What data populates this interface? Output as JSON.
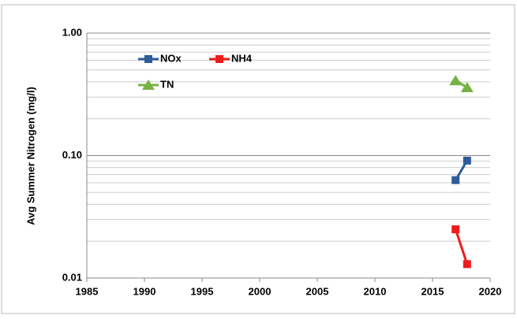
{
  "chart_data": {
    "type": "line",
    "y_label": "Avg Summer Nitrogen (mg/l)",
    "log_y": true,
    "grid": true,
    "minor_grid": true,
    "legend": "upper left",
    "xlim": [
      1985,
      2020
    ],
    "xticks": [
      1985,
      1990,
      1995,
      2000,
      2005,
      2010,
      2015,
      2020
    ],
    "ylim": [
      0.01,
      1
    ],
    "yticks": [
      0.01,
      {
        "value": 0.1,
        "label": "0.10"
      },
      {
        "value": 1,
        "label": "1.00"
      }
    ],
    "series": [
      {
        "name": "NOx",
        "color": "#2f5c99",
        "marker": "square",
        "x": [
          2017,
          2018
        ],
        "values": [
          0.063,
          0.091
        ]
      },
      {
        "name": "NH4",
        "color": "#ee1c1c",
        "marker": "square",
        "x": [
          2017,
          2018
        ],
        "values": [
          0.025,
          0.013
        ]
      },
      {
        "name": "TN",
        "color": "#77b244",
        "marker": "triangle",
        "x": [
          2017,
          2018
        ],
        "values": [
          0.41,
          0.36
        ]
      }
    ]
  }
}
